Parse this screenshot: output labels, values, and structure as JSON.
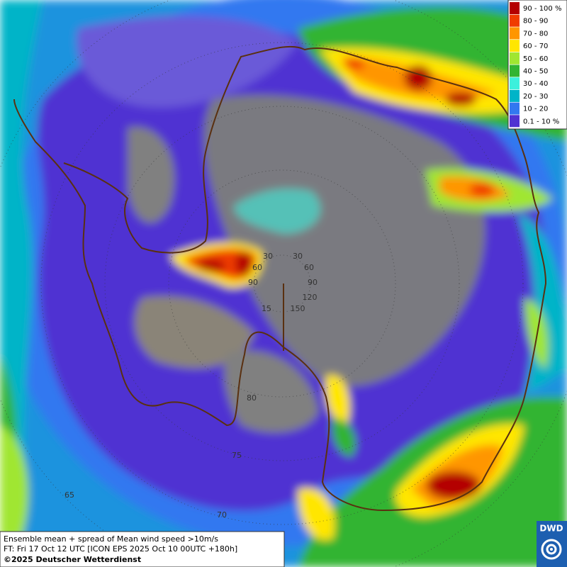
{
  "legend": {
    "items": [
      {
        "label": "90 - 100 %",
        "color": "#b40000"
      },
      {
        "label": "80 - 90",
        "color": "#f03c00"
      },
      {
        "label": "70 - 80",
        "color": "#ff9600"
      },
      {
        "label": "60 - 70",
        "color": "#ffe600"
      },
      {
        "label": "50 - 60",
        "color": "#a0e632"
      },
      {
        "label": "40 - 50",
        "color": "#32b432"
      },
      {
        "label": "30 - 40",
        "color": "#3cf0dc"
      },
      {
        "label": "20 - 30",
        "color": "#00b4c8"
      },
      {
        "label": "10 - 20",
        "color": "#3278f0"
      },
      {
        "label": "0.1 - 10 %",
        "color": "#5032d2"
      }
    ]
  },
  "grid_labels": [
    "30",
    "30",
    "60",
    "60",
    "90",
    "90",
    "120",
    "150",
    "15",
    "80",
    "75",
    "70",
    "65"
  ],
  "caption": {
    "line1": "Ensemble mean + spread of Mean wind speed >10m/s",
    "line2": "FT: Fri 17 Oct 12 UTC [ICON EPS 2025 Oct 10 00UTC +180h]",
    "line3": "©2025 Deutscher Wetterdienst"
  },
  "logo": {
    "text": "DWD"
  }
}
